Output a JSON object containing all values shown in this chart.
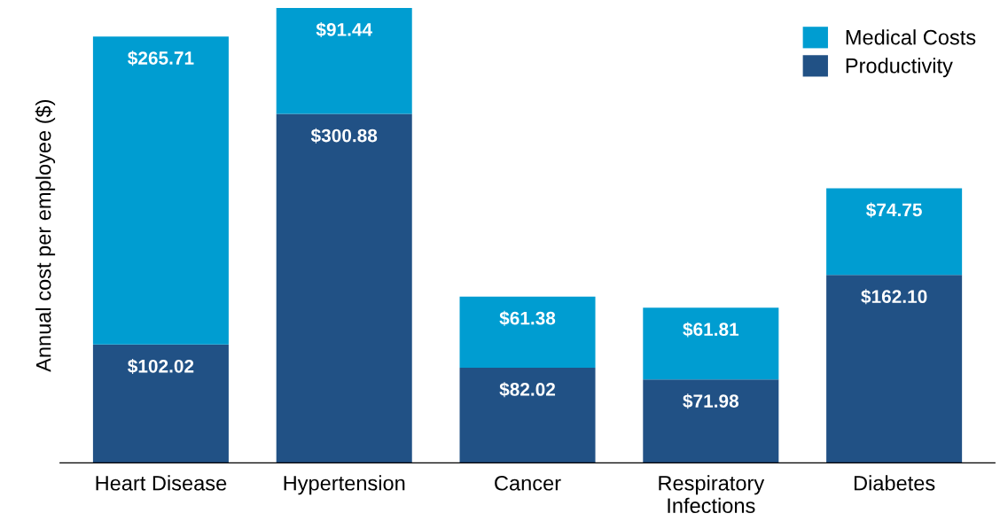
{
  "chart_data": {
    "type": "bar",
    "stacked": true,
    "ylabel": "Annual cost per employee ($)",
    "categories": [
      "Heart Disease",
      "Hypertension",
      "Cancer",
      "Respiratory\nInfections",
      "Diabetes"
    ],
    "series": [
      {
        "name": "Productivity",
        "color": "#215185",
        "values": [
          102.02,
          300.88,
          82.02,
          71.98,
          162.1
        ],
        "value_labels": [
          "$102.02",
          "$300.88",
          "$82.02",
          "$71.98",
          "$162.10"
        ]
      },
      {
        "name": "Medical Costs",
        "color": "#009dd1",
        "values": [
          265.71,
          91.44,
          61.38,
          61.81,
          74.75
        ],
        "value_labels": [
          "$265.71",
          "$91.44",
          "$61.38",
          "$61.81",
          "$74.75"
        ]
      }
    ],
    "legend": "top right",
    "grid": false
  }
}
